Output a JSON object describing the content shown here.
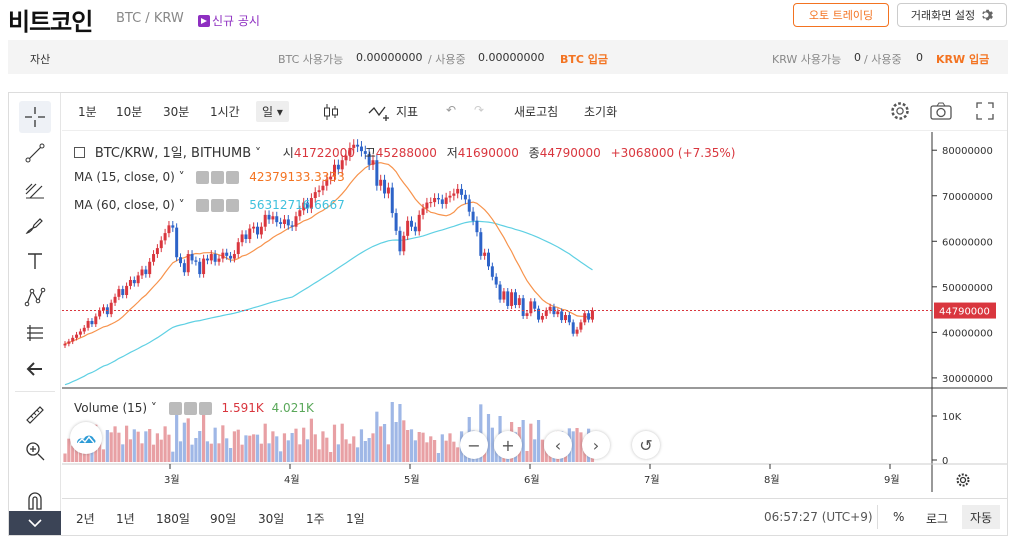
{
  "header": {
    "title": "비트코인",
    "pair": "BTC / KRW",
    "notice": "신규 공시",
    "auto_trade": "오토 트레이딩",
    "screen_settings": "거래화면 설정"
  },
  "assets": {
    "label": "자산",
    "btc_available_label": "BTC 사용가능",
    "btc_available": "0.00000000",
    "btc_in_use_label": "/ 사용중",
    "btc_in_use": "0.00000000",
    "btc_deposit": "BTC 입금",
    "krw_available_label": "KRW 사용가능",
    "krw_available": "0",
    "krw_in_use_label": "/ 사용중",
    "krw_in_use": "0",
    "krw_deposit": "KRW 입금"
  },
  "toolbar": {
    "intervals": [
      "1분",
      "10분",
      "30분",
      "1시간",
      "일"
    ],
    "selected_interval": "일",
    "indicator": "지표",
    "refresh": "새로고침",
    "reset": "초기화"
  },
  "legend": {
    "symbol": "BTC/KRW, 1일, BITHUMB",
    "open_label": "시",
    "open": "41722000",
    "high_label": "고",
    "high": "45288000",
    "low_label": "저",
    "low": "41690000",
    "close_label": "종",
    "close": "44790000",
    "change": "+3068000 (+7.35%)",
    "ma15_label": "MA (15, close, 0)",
    "ma15_value": "42379133.3333",
    "ma60_label": "MA (60, close, 0)",
    "ma60_value": "56312716.6667",
    "volume_label": "Volume (15)",
    "volume_value_1": "1.591K",
    "volume_value_2": "4.021K"
  },
  "price_axis": {
    "ticks": [
      "80000000",
      "70000000",
      "60000000",
      "50000000",
      "40000000",
      "30000000"
    ],
    "current_price": "44790000",
    "volume_ticks": [
      "10K",
      "0"
    ]
  },
  "time_axis": {
    "ticks": [
      "3월",
      "4월",
      "5월",
      "6월",
      "7월",
      "8월",
      "9월"
    ]
  },
  "bottombar": {
    "ranges": [
      "2년",
      "1년",
      "180일",
      "90일",
      "30일",
      "1주",
      "1일"
    ],
    "clock": "06:57:27 (UTC+9)",
    "percent": "%",
    "log": "로그",
    "auto": "자동"
  },
  "colors": {
    "up": "#d9363e",
    "down": "#2d63c8",
    "ma15": "#f7934c",
    "ma60": "#5fd0e3",
    "accent": "#f37321"
  },
  "chart_data": {
    "type": "candlestick",
    "ylim": [
      28000000,
      84000000
    ],
    "closes": [
      37500000,
      38000000,
      38800000,
      39500000,
      40200000,
      41000000,
      42500000,
      41800000,
      43500000,
      44800000,
      45500000,
      44000000,
      46500000,
      47800000,
      49500000,
      48200000,
      50200000,
      51500000,
      50800000,
      52500000,
      53800000,
      52800000,
      55500000,
      57200000,
      58500000,
      60200000,
      61800000,
      63500000,
      63000000,
      56500000,
      55200000,
      53200000,
      57200000,
      55800000,
      55500000,
      52800000,
      56200000,
      55800000,
      57200000,
      55500000,
      56200000,
      57500000,
      56800000,
      56200000,
      57200000,
      59800000,
      61500000,
      60500000,
      62800000,
      63200000,
      61500000,
      63200000,
      65800000,
      64800000,
      65500000,
      64200000,
      63800000,
      64800000,
      63500000,
      63200000,
      65500000,
      66800000,
      68500000,
      67200000,
      69500000,
      70800000,
      71200000,
      72200000,
      73600000,
      74200000,
      76800000,
      75800000,
      77800000,
      78800000,
      80500000,
      81200000,
      80800000,
      79800000,
      79200000,
      76800000,
      77800000,
      72200000,
      73500000,
      70500000,
      71800000,
      66200000,
      62300000,
      57800000,
      61200000,
      64500000,
      63200000,
      62200000,
      65800000,
      67200000,
      68500000,
      68600000,
      69500000,
      69200000,
      68200000,
      69600000,
      70000000,
      70500000,
      71500000,
      70200000,
      69200000,
      66500000,
      64500000,
      62000000,
      56800000,
      57500000,
      54500000,
      52200000,
      50500000,
      47200000,
      49000000,
      45800000,
      48800000,
      46000000,
      47500000,
      43600000,
      44200000,
      46800000,
      45200000,
      42800000,
      43600000,
      44800000,
      45600000,
      44000000,
      44600000,
      42700000,
      43800000,
      42200000,
      39700000,
      40600000,
      42200000,
      44200000,
      42800000,
      44800000
    ],
    "ma15_last": 42379133.3333,
    "ma60_last": 56312716.6667,
    "current_price": 44790000,
    "volume_ticks": [
      "10K",
      "0"
    ],
    "x_ticks": [
      "3월",
      "4월",
      "5월",
      "6월",
      "7월",
      "8월",
      "9월"
    ]
  }
}
